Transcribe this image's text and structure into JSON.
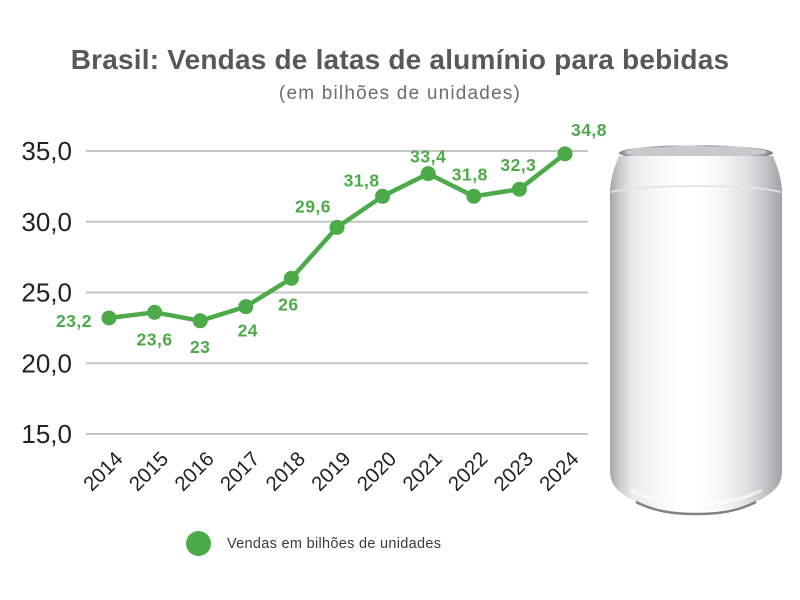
{
  "header": {
    "title": "Brasil: Vendas de latas de alumínio para bebidas",
    "subtitle": "(em bilhões de unidades)"
  },
  "legend": {
    "marker": "green-dot",
    "label": "Vendas em bilhões de unidades"
  },
  "colors": {
    "accent_green": "#4caa48",
    "title_text": "#57585a",
    "subtitle_text": "#6c6d6f",
    "axis_text": "#222222",
    "gridline": "#c6c6c6"
  },
  "chart_data": {
    "type": "line",
    "title": "Brasil: Vendas de latas de alumínio para bebidas",
    "subtitle": "(em bilhões de unidades)",
    "series_name": "Vendas em bilhões de unidades",
    "categories": [
      "2014",
      "2015",
      "2016",
      "2017",
      "2018",
      "2019",
      "2020",
      "2021",
      "2022",
      "2023",
      "2024"
    ],
    "values": [
      23.2,
      23.6,
      23,
      24,
      26,
      29.6,
      31.8,
      33.4,
      31.8,
      32.3,
      34.8
    ],
    "point_labels": [
      "23,2",
      "23,6",
      "23",
      "24",
      "26",
      "29,6",
      "31,8",
      "33,4",
      "31,8",
      "32,3",
      "34,8"
    ],
    "yticks_values": [
      35,
      30,
      25,
      20,
      15
    ],
    "yticks_labels": [
      "35,0",
      "30,0",
      "25,0",
      "20,0",
      "15,0"
    ],
    "ylim": [
      15,
      35
    ],
    "grid": true,
    "legend_position": "bottom",
    "marker": "circle",
    "line_color": "#4caa48"
  }
}
